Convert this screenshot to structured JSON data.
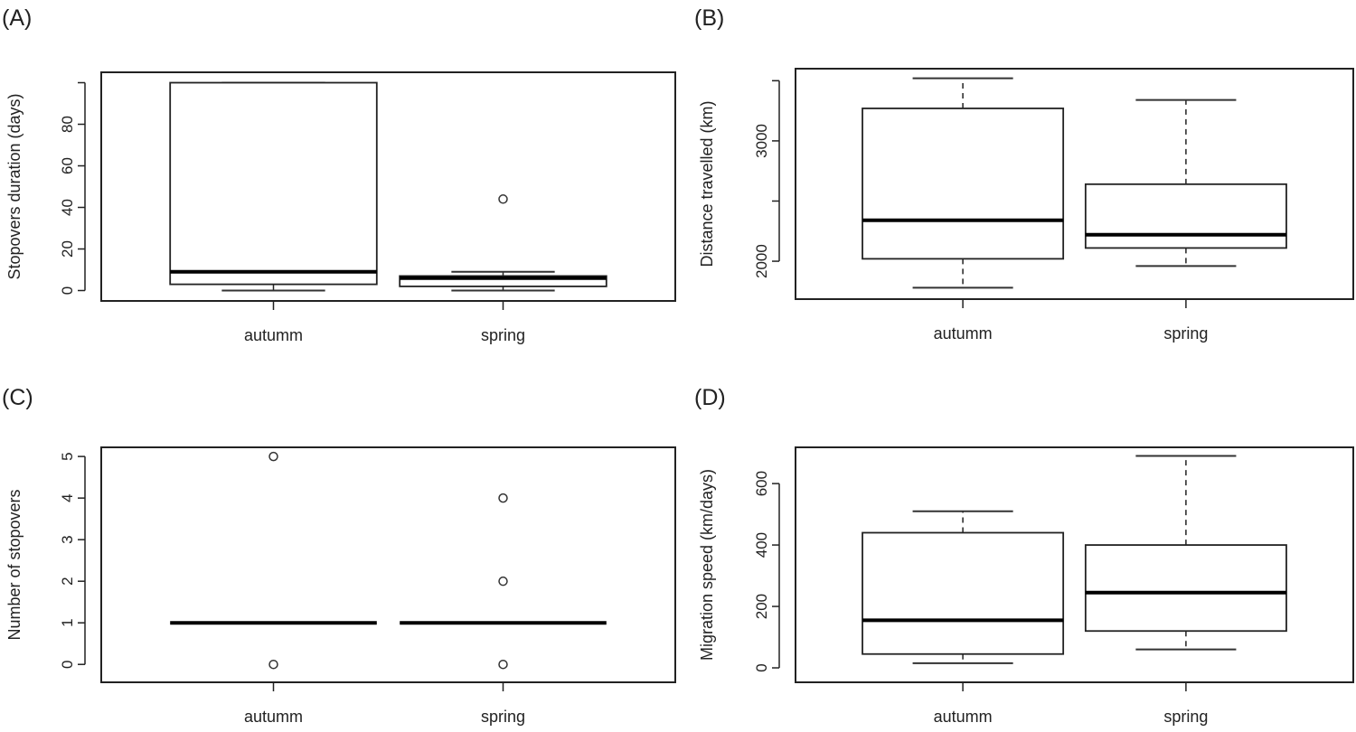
{
  "chart_data": [
    {
      "type": "boxplot",
      "panel_label": "(A)",
      "ylabel": "Stopovers duration (days)",
      "xlabel": "",
      "categories": [
        "autumm",
        "spring"
      ],
      "ylim": [
        -5,
        105
      ],
      "yticks": [
        0,
        20,
        40,
        60,
        80,
        100
      ],
      "ytick_labels": [
        "0",
        "20",
        "40",
        "60",
        "80",
        ""
      ],
      "boxes": [
        {
          "name": "autumm",
          "lower": 0,
          "q1": 3,
          "median": 9,
          "q3": 100,
          "upper": 100,
          "outliers": []
        },
        {
          "name": "spring",
          "lower": 0,
          "q1": 2,
          "median": 6,
          "q3": 7,
          "upper": 9,
          "outliers": [
            44
          ]
        }
      ]
    },
    {
      "type": "boxplot",
      "panel_label": "(B)",
      "ylabel": "Distance travelled (km)",
      "xlabel": "",
      "categories": [
        "autumm",
        "spring"
      ],
      "ylim": [
        1685,
        3600
      ],
      "yticks": [
        2000,
        2500,
        3000,
        3500
      ],
      "ytick_labels": [
        "2000",
        "",
        "3000",
        ""
      ],
      "boxes": [
        {
          "name": "autumm",
          "lower": 1780,
          "q1": 2020,
          "median": 2340,
          "q3": 3270,
          "upper": 3520,
          "outliers": []
        },
        {
          "name": "spring",
          "lower": 1960,
          "q1": 2110,
          "median": 2220,
          "q3": 2640,
          "upper": 3340,
          "outliers": []
        }
      ]
    },
    {
      "type": "boxplot",
      "panel_label": "(C)",
      "ylabel": "Number of stopovers",
      "xlabel": "",
      "categories": [
        "autumm",
        "spring"
      ],
      "ylim": [
        -0.43,
        5.22
      ],
      "yticks": [
        0,
        1,
        2,
        3,
        4,
        5
      ],
      "ytick_labels": [
        "0",
        "1",
        "2",
        "3",
        "4",
        "5"
      ],
      "boxes": [
        {
          "name": "autumm",
          "lower": 1,
          "q1": 1,
          "median": 1,
          "q3": 1,
          "upper": 1,
          "outliers": [
            5,
            0
          ]
        },
        {
          "name": "spring",
          "lower": 1,
          "q1": 1,
          "median": 1,
          "q3": 1,
          "upper": 1,
          "outliers": [
            4,
            2,
            0
          ]
        }
      ]
    },
    {
      "type": "boxplot",
      "panel_label": "(D)",
      "ylabel": "Migration speed (km/days)",
      "xlabel": "",
      "categories": [
        "autumm",
        "spring"
      ],
      "ylim": [
        -47,
        718
      ],
      "yticks": [
        0,
        200,
        400,
        600
      ],
      "ytick_labels": [
        "0",
        "200",
        "400",
        "600"
      ],
      "boxes": [
        {
          "name": "autumm",
          "lower": 15,
          "q1": 45,
          "median": 155,
          "q3": 440,
          "upper": 510,
          "outliers": []
        },
        {
          "name": "spring",
          "lower": 60,
          "q1": 120,
          "median": 245,
          "q3": 400,
          "upper": 690,
          "outliers": []
        }
      ]
    }
  ]
}
